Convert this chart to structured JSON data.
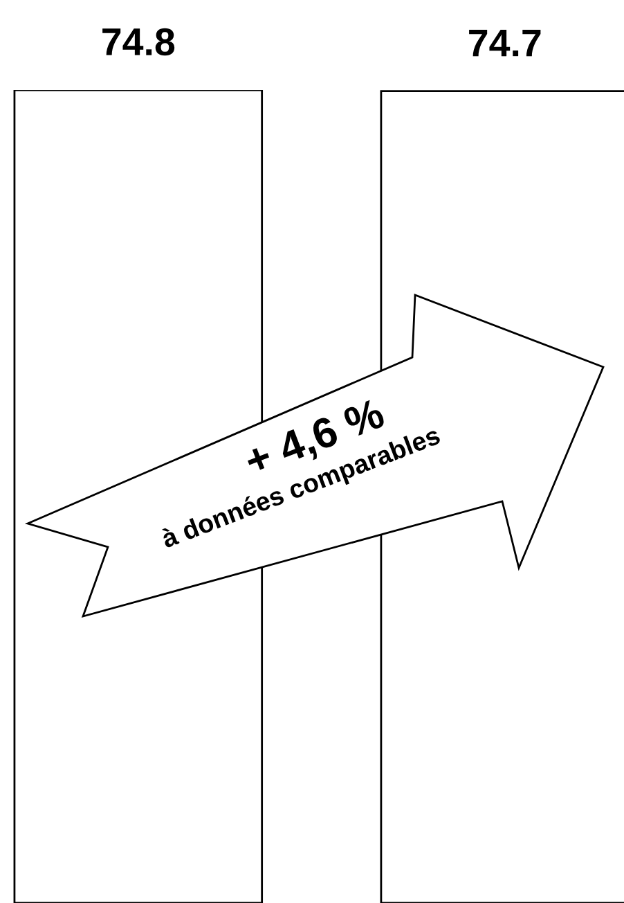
{
  "chart_data": {
    "type": "bar",
    "categories": [
      null,
      null
    ],
    "values": [
      74.8,
      74.7
    ],
    "colors": [
      "#ffffff",
      "#ffffff"
    ],
    "data_labels": true,
    "annotations": [
      "+ 4,6 %",
      "à données comparables"
    ]
  }
}
